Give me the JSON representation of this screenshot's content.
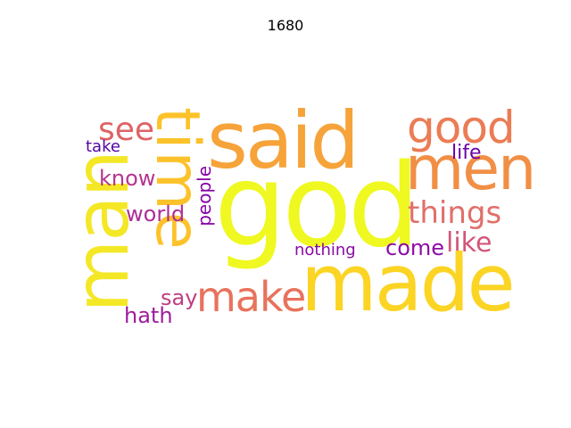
{
  "title": "1680",
  "words": {
    "god": {
      "text": "god",
      "color": "#eff821"
    },
    "made": {
      "text": "made",
      "color": "#fbd424"
    },
    "man": {
      "text": "man",
      "color": "#f4e726"
    },
    "said": {
      "text": "said",
      "color": "#f6a33a"
    },
    "men": {
      "text": "men",
      "color": "#f08f45"
    },
    "time": {
      "text": "time",
      "color": "#fcc22a"
    },
    "good": {
      "text": "good",
      "color": "#eb7c54"
    },
    "make": {
      "text": "make",
      "color": "#e8725c"
    },
    "things": {
      "text": "things",
      "color": "#e16f6a"
    },
    "like": {
      "text": "like",
      "color": "#d1567a"
    },
    "see": {
      "text": "see",
      "color": "#de6365"
    },
    "know": {
      "text": "know",
      "color": "#b5348f"
    },
    "world": {
      "text": "world",
      "color": "#ad2e97"
    },
    "come": {
      "text": "come",
      "color": "#8e0ca7"
    },
    "life": {
      "text": "life",
      "color": "#6b01a9"
    },
    "say": {
      "text": "say",
      "color": "#c03d80"
    },
    "hath": {
      "text": "hath",
      "color": "#9f1c9d"
    },
    "people": {
      "text": "people",
      "color": "#8603a7"
    },
    "nothing": {
      "text": "nothing",
      "color": "#8a0aa4"
    },
    "take": {
      "text": "take",
      "color": "#5402a3"
    }
  }
}
